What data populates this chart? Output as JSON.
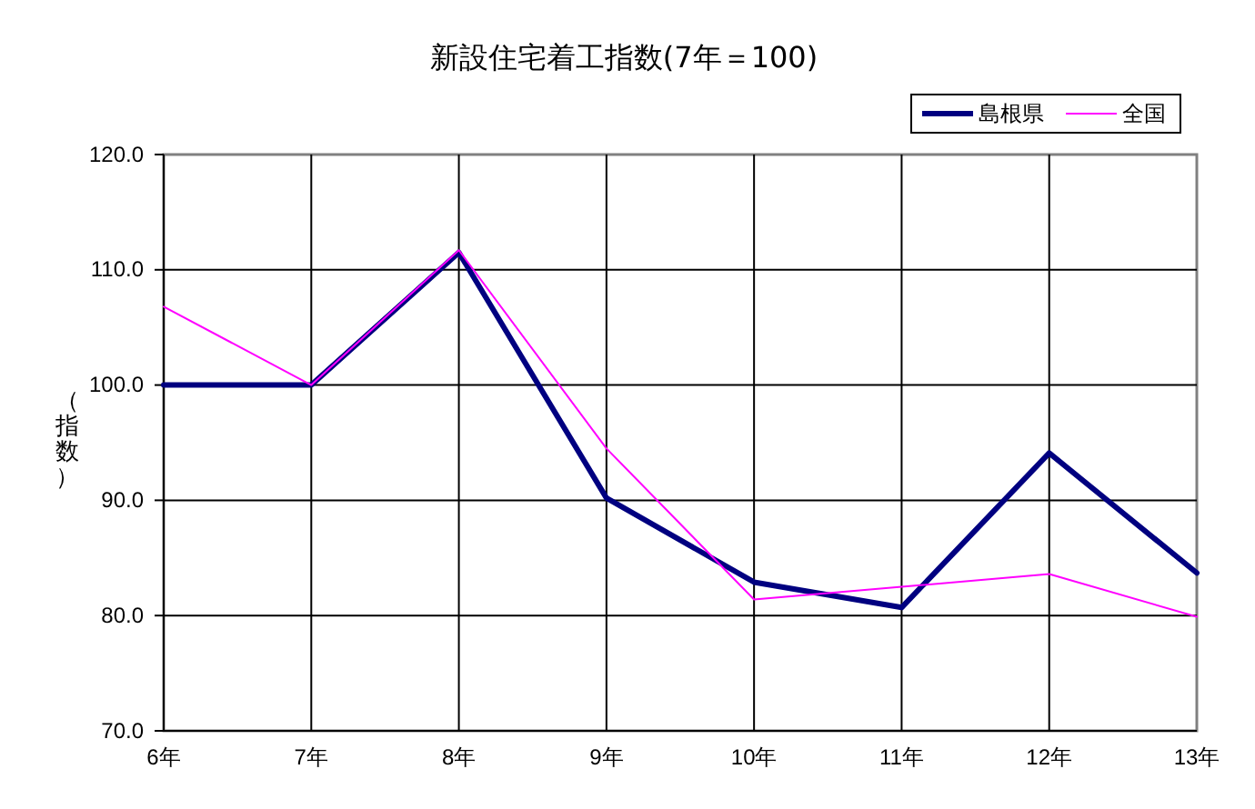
{
  "chart_data": {
    "type": "line",
    "title": "新設住宅着工指数(7年＝100)",
    "ylabel": "（指数）",
    "categories": [
      "6年",
      "7年",
      "8年",
      "9年",
      "10年",
      "11年",
      "12年",
      "13年"
    ],
    "series": [
      {
        "name": "島根県",
        "color": "#000080",
        "values": [
          100.0,
          100.0,
          111.5,
          90.2,
          82.9,
          80.7,
          94.1,
          83.7
        ]
      },
      {
        "name": "全国",
        "color": "#ff00ff",
        "values": [
          106.8,
          100.0,
          111.7,
          94.5,
          81.4,
          82.5,
          83.6,
          79.9
        ]
      }
    ],
    "ylim": [
      70,
      120
    ],
    "yticks": [
      {
        "value": 70,
        "label": "70.0"
      },
      {
        "value": 80,
        "label": "80.0"
      },
      {
        "value": 90,
        "label": "90.0"
      },
      {
        "value": 100,
        "label": "100.0"
      },
      {
        "value": 110,
        "label": "110.0"
      },
      {
        "value": 120,
        "label": "120.0"
      }
    ],
    "grid": true,
    "legend": "top right",
    "marker": "none",
    "line_style": "solid"
  }
}
